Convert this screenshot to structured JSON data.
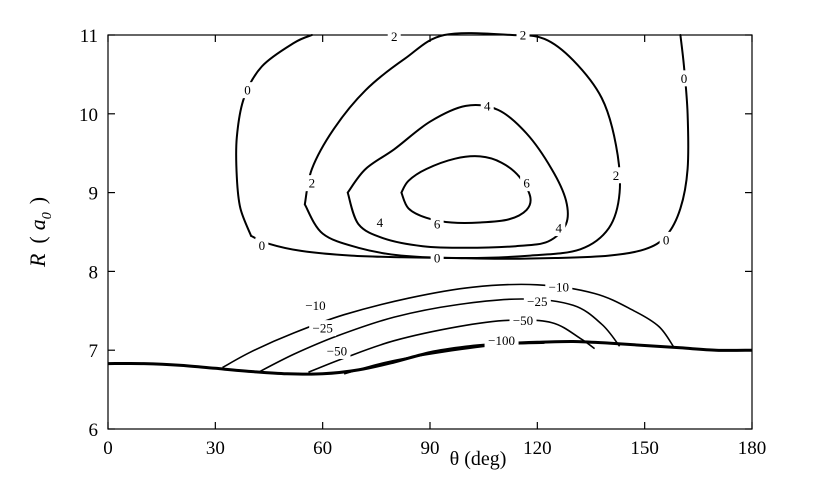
{
  "chart_data": {
    "type": "contour",
    "xlabel": "θ (deg)",
    "ylabel_main": "R",
    "ylabel_unit": "a",
    "ylabel_sub": "0",
    "xlim": [
      0,
      180
    ],
    "ylim": [
      6,
      11
    ],
    "x_ticks": [
      0,
      30,
      60,
      90,
      120,
      150,
      180
    ],
    "y_ticks": [
      6,
      7,
      8,
      9,
      10,
      11
    ],
    "grid": false,
    "levels": [
      {
        "value": "6",
        "points": [
          [
            82,
            9.0
          ],
          [
            84,
            8.8
          ],
          [
            89,
            8.68
          ],
          [
            96,
            8.62
          ],
          [
            104,
            8.62
          ],
          [
            112,
            8.66
          ],
          [
            117,
            8.78
          ],
          [
            118,
            8.95
          ],
          [
            115,
            9.2
          ],
          [
            110,
            9.38
          ],
          [
            104,
            9.46
          ],
          [
            97,
            9.43
          ],
          [
            89,
            9.3
          ],
          [
            84,
            9.15
          ],
          [
            82,
            9.0
          ]
        ],
        "labels": [
          {
            "text": "6",
            "x": 92,
            "y": 8.6
          },
          {
            "text": "6",
            "x": 117,
            "y": 9.12
          }
        ]
      },
      {
        "value": "4",
        "points": [
          [
            67,
            9.0
          ],
          [
            70,
            8.6
          ],
          [
            77,
            8.42
          ],
          [
            88,
            8.32
          ],
          [
            100,
            8.3
          ],
          [
            114,
            8.32
          ],
          [
            123,
            8.38
          ],
          [
            128,
            8.6
          ],
          [
            128,
            8.9
          ],
          [
            124,
            9.3
          ],
          [
            117,
            9.75
          ],
          [
            109,
            10.05
          ],
          [
            100,
            10.1
          ],
          [
            90,
            9.9
          ],
          [
            80,
            9.55
          ],
          [
            72,
            9.3
          ],
          [
            67,
            9.0
          ]
        ],
        "labels": [
          {
            "text": "4",
            "x": 106,
            "y": 10.1
          },
          {
            "text": "4",
            "x": 76,
            "y": 8.62
          },
          {
            "text": "4",
            "x": 126,
            "y": 8.55
          }
        ]
      },
      {
        "value": "2",
        "points": [
          [
            55,
            8.85
          ],
          [
            60,
            8.48
          ],
          [
            70,
            8.3
          ],
          [
            82,
            8.2
          ],
          [
            100,
            8.17
          ],
          [
            118,
            8.2
          ],
          [
            132,
            8.28
          ],
          [
            140,
            8.55
          ],
          [
            143,
            9.0
          ],
          [
            142,
            9.6
          ],
          [
            138,
            10.2
          ],
          [
            130,
            10.68
          ],
          [
            122,
            10.95
          ],
          [
            113,
            11.0
          ],
          [
            94,
            11.0
          ],
          [
            83,
            10.7
          ],
          [
            72,
            10.3
          ],
          [
            63,
            9.8
          ],
          [
            57,
            9.3
          ],
          [
            55,
            8.85
          ]
        ],
        "labels": [
          {
            "text": "2",
            "x": 57,
            "y": 9.12
          },
          {
            "text": "2",
            "x": 80,
            "y": 10.98
          },
          {
            "text": "2",
            "x": 142,
            "y": 9.22
          },
          {
            "text": "2",
            "x": 116,
            "y": 11.0
          }
        ]
      },
      {
        "value": "0",
        "points": [
          [
            40,
            8.45
          ],
          [
            45,
            8.35
          ],
          [
            54,
            8.26
          ],
          [
            68,
            8.2
          ],
          [
            82,
            8.18
          ],
          [
            96,
            8.17
          ],
          [
            110,
            8.16
          ],
          [
            125,
            8.17
          ],
          [
            140,
            8.2
          ],
          [
            150,
            8.28
          ],
          [
            156,
            8.45
          ],
          [
            160,
            8.8
          ],
          [
            162,
            9.3
          ],
          [
            162,
            10.0
          ],
          [
            161,
            10.6
          ],
          [
            160,
            11.0
          ]
        ],
        "labels": [
          {
            "text": "0",
            "x": 43,
            "y": 8.33
          },
          {
            "text": "0",
            "x": 92,
            "y": 8.17
          },
          {
            "text": "0",
            "x": 156,
            "y": 8.4
          },
          {
            "text": "0",
            "x": 161,
            "y": 10.45
          }
        ]
      },
      {
        "value": "0",
        "points": [
          [
            40,
            8.45
          ],
          [
            37,
            8.8
          ],
          [
            36,
            9.2
          ],
          [
            36,
            9.7
          ],
          [
            38,
            10.2
          ],
          [
            43,
            10.6
          ],
          [
            52,
            10.9
          ],
          [
            57,
            11.0
          ]
        ],
        "labels": [
          {
            "text": "0",
            "x": 39,
            "y": 10.3
          }
        ]
      },
      {
        "value": "-10",
        "points": [
          [
            32,
            6.78
          ],
          [
            40,
            6.98
          ],
          [
            52,
            7.22
          ],
          [
            66,
            7.45
          ],
          [
            84,
            7.66
          ],
          [
            102,
            7.8
          ],
          [
            120,
            7.83
          ],
          [
            136,
            7.72
          ],
          [
            147,
            7.5
          ],
          [
            154,
            7.3
          ],
          [
            158,
            7.05
          ]
        ],
        "labels": [
          {
            "text": "−10",
            "x": 58,
            "y": 7.57
          },
          {
            "text": "−10",
            "x": 126,
            "y": 7.8
          }
        ]
      },
      {
        "value": "-25",
        "points": [
          [
            42,
            6.72
          ],
          [
            52,
            6.95
          ],
          [
            64,
            7.18
          ],
          [
            80,
            7.42
          ],
          [
            98,
            7.58
          ],
          [
            116,
            7.65
          ],
          [
            130,
            7.57
          ],
          [
            138,
            7.33
          ],
          [
            143,
            7.05
          ]
        ],
        "labels": [
          {
            "text": "−25",
            "x": 60,
            "y": 7.28
          },
          {
            "text": "−25",
            "x": 120,
            "y": 7.62
          }
        ]
      },
      {
        "value": "-50",
        "points": [
          [
            56,
            6.72
          ],
          [
            66,
            6.9
          ],
          [
            80,
            7.12
          ],
          [
            98,
            7.3
          ],
          [
            112,
            7.38
          ],
          [
            124,
            7.35
          ],
          [
            132,
            7.15
          ],
          [
            136,
            7.02
          ]
        ],
        "labels": [
          {
            "text": "−50",
            "x": 64,
            "y": 6.99
          },
          {
            "text": "−50",
            "x": 116,
            "y": 7.38
          }
        ]
      },
      {
        "value": "-100",
        "points": [
          [
            66,
            6.7
          ],
          [
            78,
            6.85
          ],
          [
            94,
            6.98
          ],
          [
            110,
            7.07
          ],
          [
            122,
            7.09
          ]
        ],
        "labels": [
          {
            "text": "−100",
            "x": 110,
            "y": 7.12
          }
        ]
      }
    ],
    "boundary": [
      [
        0,
        6.83
      ],
      [
        10,
        6.83
      ],
      [
        20,
        6.81
      ],
      [
        30,
        6.77
      ],
      [
        40,
        6.73
      ],
      [
        50,
        6.7
      ],
      [
        60,
        6.7
      ],
      [
        70,
        6.75
      ],
      [
        80,
        6.85
      ],
      [
        90,
        6.97
      ],
      [
        100,
        7.04
      ],
      [
        110,
        7.08
      ],
      [
        120,
        7.1
      ],
      [
        130,
        7.11
      ],
      [
        140,
        7.09
      ],
      [
        150,
        7.06
      ],
      [
        160,
        7.03
      ],
      [
        170,
        7.0
      ],
      [
        180,
        7.0
      ]
    ]
  }
}
